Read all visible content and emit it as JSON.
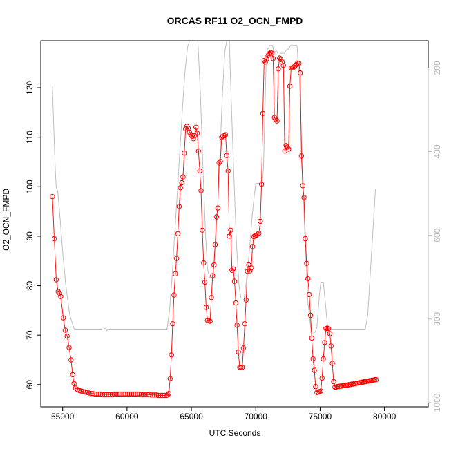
{
  "chart_data": {
    "type": "line",
    "title": "ORCAS RF11 O2_OCN_FMPD",
    "xlabel": "UTC Seconds",
    "ylabel": "O2_OCN_FMPD",
    "xlim": [
      53300,
      83400
    ],
    "ylim": [
      55.5,
      129.5
    ],
    "y2lim": [
      1010,
      135
    ],
    "y2_reversed": true,
    "x_ticks": [
      55000,
      60000,
      65000,
      70000,
      75000,
      80000
    ],
    "y_ticks": [
      60,
      70,
      80,
      90,
      100,
      110,
      120
    ],
    "y2_ticks": [
      200,
      400,
      600,
      800,
      1000
    ],
    "grid": false,
    "colors": {
      "series": "#ff0000",
      "secondary": "#bebebe",
      "right_axis": "#b8b8b8",
      "axis": "#000000"
    },
    "series": [
      {
        "marker": "open-circle",
        "color": "#ff0000",
        "points": [
          [
            54200,
            98
          ],
          [
            54350,
            89.5
          ],
          [
            54500,
            81.2
          ],
          [
            54650,
            78.8
          ],
          [
            54750,
            78.5
          ],
          [
            54850,
            77.8
          ],
          [
            55050,
            73.5
          ],
          [
            55200,
            71
          ],
          [
            55350,
            69.8
          ],
          [
            55500,
            67.5
          ],
          [
            55650,
            65
          ],
          [
            55780,
            62
          ],
          [
            55880,
            60.2
          ],
          [
            56000,
            59.3
          ],
          [
            56150,
            59
          ],
          [
            56300,
            58.8
          ],
          [
            56450,
            58.7
          ],
          [
            56600,
            58.6
          ],
          [
            56750,
            58.5
          ],
          [
            56900,
            58.4
          ],
          [
            57050,
            58.3
          ],
          [
            57200,
            58.2
          ],
          [
            57350,
            58.2
          ],
          [
            57500,
            58.1
          ],
          [
            57650,
            58.1
          ],
          [
            57800,
            58.1
          ],
          [
            57950,
            58.1
          ],
          [
            58100,
            58
          ],
          [
            58250,
            58
          ],
          [
            58400,
            58
          ],
          [
            58550,
            58
          ],
          [
            58700,
            58
          ],
          [
            58850,
            58
          ],
          [
            59000,
            58.1
          ],
          [
            59150,
            58.1
          ],
          [
            59300,
            58.1
          ],
          [
            59450,
            58.1
          ],
          [
            59600,
            58.1
          ],
          [
            59750,
            58.1
          ],
          [
            59900,
            58.1
          ],
          [
            60050,
            58.1
          ],
          [
            60200,
            58.1
          ],
          [
            60350,
            58.1
          ],
          [
            60500,
            58.1
          ],
          [
            60650,
            58.1
          ],
          [
            60800,
            58.1
          ],
          [
            60950,
            58.1
          ],
          [
            61100,
            58
          ],
          [
            61250,
            58
          ],
          [
            61400,
            58
          ],
          [
            61550,
            58
          ],
          [
            61700,
            58
          ],
          [
            61850,
            57.9
          ],
          [
            62000,
            57.9
          ],
          [
            62150,
            57.9
          ],
          [
            62300,
            57.9
          ],
          [
            62450,
            57.8
          ],
          [
            62600,
            57.8
          ],
          [
            62750,
            57.8
          ],
          [
            62900,
            57.8
          ],
          [
            63050,
            57.8
          ],
          [
            63150,
            57.9
          ],
          [
            63250,
            58.2
          ],
          [
            63350,
            61.2
          ],
          [
            63450,
            66
          ],
          [
            63550,
            72.3
          ],
          [
            63650,
            78.1
          ],
          [
            63750,
            82.4
          ],
          [
            63850,
            85.5
          ],
          [
            63950,
            90.5
          ],
          [
            64050,
            96
          ],
          [
            64150,
            99.8
          ],
          [
            64250,
            100.8
          ],
          [
            64350,
            102
          ],
          [
            64450,
            106.8
          ],
          [
            64550,
            111.7
          ],
          [
            64650,
            112.2
          ],
          [
            64750,
            111.8
          ],
          [
            64850,
            111
          ],
          [
            64950,
            110.5
          ],
          [
            65050,
            110.2
          ],
          [
            65150,
            109.7
          ],
          [
            65250,
            110.3
          ],
          [
            65350,
            112
          ],
          [
            65450,
            110.8
          ],
          [
            65550,
            107.2
          ],
          [
            65650,
            103.2
          ],
          [
            65750,
            99.2
          ],
          [
            65850,
            91.2
          ],
          [
            65950,
            84.6
          ],
          [
            66050,
            80.7
          ],
          [
            66150,
            75.6
          ],
          [
            66250,
            73
          ],
          [
            66350,
            72.9
          ],
          [
            66450,
            72.8
          ],
          [
            66550,
            77.6
          ],
          [
            66650,
            82
          ],
          [
            66750,
            84.2
          ],
          [
            66850,
            88.3
          ],
          [
            66950,
            93.9
          ],
          [
            67050,
            95.7
          ],
          [
            67150,
            104.8
          ],
          [
            67250,
            105.1
          ],
          [
            67350,
            110
          ],
          [
            67450,
            110.2
          ],
          [
            67550,
            110.3
          ],
          [
            67650,
            110.5
          ],
          [
            67750,
            106.3
          ],
          [
            67850,
            103.2
          ],
          [
            67950,
            90
          ],
          [
            68050,
            91.2
          ],
          [
            68150,
            83.1
          ],
          [
            68250,
            83.4
          ],
          [
            68350,
            80.9
          ],
          [
            68450,
            76.5
          ],
          [
            68550,
            72
          ],
          [
            68650,
            66.6
          ],
          [
            68750,
            63.5
          ],
          [
            68850,
            63.5
          ],
          [
            68950,
            63.5
          ],
          [
            69050,
            67.4
          ],
          [
            69150,
            72.3
          ],
          [
            69250,
            77.1
          ],
          [
            69350,
            82.9
          ],
          [
            69450,
            84.2
          ],
          [
            69550,
            83
          ],
          [
            69650,
            83.6
          ],
          [
            69750,
            87.9
          ],
          [
            69850,
            89.9
          ],
          [
            69950,
            90.1
          ],
          [
            70050,
            90.2
          ],
          [
            70150,
            90.4
          ],
          [
            70250,
            90.6
          ],
          [
            70350,
            93
          ],
          [
            70450,
            100.5
          ],
          [
            70550,
            114.8
          ],
          [
            70650,
            125.5
          ],
          [
            70750,
            125.2
          ],
          [
            70850,
            125.8
          ],
          [
            70950,
            126.5
          ],
          [
            71050,
            126.9
          ],
          [
            71150,
            127.1
          ],
          [
            71250,
            127
          ],
          [
            71350,
            125.9
          ],
          [
            71450,
            114
          ],
          [
            71550,
            113.6
          ],
          [
            71650,
            113.3
          ],
          [
            71750,
            123.8
          ],
          [
            71850,
            126
          ],
          [
            71950,
            125.7
          ],
          [
            72050,
            125.2
          ],
          [
            72150,
            124.5
          ],
          [
            72250,
            107.2
          ],
          [
            72350,
            108.3
          ],
          [
            72450,
            108
          ],
          [
            72550,
            107.6
          ],
          [
            72650,
            120.3
          ],
          [
            72750,
            124
          ],
          [
            72850,
            124
          ],
          [
            72950,
            124.2
          ],
          [
            73050,
            124.4
          ],
          [
            73150,
            124.7
          ],
          [
            73250,
            125
          ],
          [
            73350,
            124.9
          ],
          [
            73450,
            123
          ],
          [
            73550,
            106.2
          ],
          [
            73650,
            100.2
          ],
          [
            73750,
            97.8
          ],
          [
            73850,
            89.5
          ],
          [
            73950,
            84.5
          ],
          [
            74050,
            81.4
          ],
          [
            74150,
            78.2
          ],
          [
            74250,
            74
          ],
          [
            74350,
            69.4
          ],
          [
            74450,
            65.2
          ],
          [
            74550,
            62.9
          ],
          [
            74650,
            59.6
          ],
          [
            74750,
            58.4
          ],
          [
            74850,
            58.5
          ],
          [
            74950,
            58.6
          ],
          [
            75050,
            58.7
          ],
          [
            75150,
            61.3
          ],
          [
            75250,
            65.2
          ],
          [
            75350,
            68.5
          ],
          [
            75450,
            71.3
          ],
          [
            75550,
            71.4
          ],
          [
            75650,
            71.3
          ],
          [
            75750,
            70.3
          ],
          [
            75850,
            67.8
          ],
          [
            75950,
            64.3
          ],
          [
            76050,
            60.6
          ],
          [
            76150,
            59.5
          ],
          [
            76250,
            59.5
          ],
          [
            76350,
            59.6
          ],
          [
            76450,
            59.6
          ],
          [
            76550,
            59.7
          ],
          [
            76650,
            59.7
          ],
          [
            76750,
            59.8
          ],
          [
            76850,
            59.8
          ],
          [
            76950,
            59.9
          ],
          [
            77050,
            59.9
          ],
          [
            77150,
            59.9
          ],
          [
            77250,
            60
          ],
          [
            77350,
            60
          ],
          [
            77450,
            60.1
          ],
          [
            77550,
            60.1
          ],
          [
            77650,
            60.2
          ],
          [
            77750,
            60.2
          ],
          [
            77850,
            60.3
          ],
          [
            77950,
            60.3
          ],
          [
            78050,
            60.4
          ],
          [
            78150,
            60.4
          ],
          [
            78250,
            60.5
          ],
          [
            78350,
            60.5
          ],
          [
            78450,
            60.6
          ],
          [
            78550,
            60.6
          ],
          [
            78650,
            60.7
          ],
          [
            78750,
            60.7
          ],
          [
            78850,
            60.8
          ],
          [
            78950,
            60.8
          ],
          [
            79050,
            60.9
          ],
          [
            79150,
            60.9
          ],
          [
            79250,
            61
          ],
          [
            79350,
            61
          ]
        ]
      }
    ],
    "secondary": {
      "axis": "right",
      "color": "#bebebe",
      "points": [
        [
          54200,
          245
        ],
        [
          54420,
          440
        ],
        [
          54500,
          485
        ],
        [
          54620,
          495
        ],
        [
          54800,
          560
        ],
        [
          55000,
          640
        ],
        [
          55250,
          720
        ],
        [
          55550,
          790
        ],
        [
          55900,
          825
        ],
        [
          56100,
          826
        ],
        [
          57000,
          826
        ],
        [
          58000,
          826
        ],
        [
          58300,
          822
        ],
        [
          58400,
          828
        ],
        [
          58500,
          826
        ],
        [
          59000,
          826
        ],
        [
          60000,
          826
        ],
        [
          61000,
          826
        ],
        [
          62000,
          826
        ],
        [
          63000,
          826
        ],
        [
          63100,
          826
        ],
        [
          63300,
          780
        ],
        [
          63500,
          700
        ],
        [
          63700,
          600
        ],
        [
          63900,
          500
        ],
        [
          64100,
          400
        ],
        [
          64300,
          300
        ],
        [
          64500,
          210
        ],
        [
          64700,
          150
        ],
        [
          64850,
          135
        ],
        [
          65500,
          135
        ],
        [
          65700,
          260
        ],
        [
          65900,
          440
        ],
        [
          66100,
          600
        ],
        [
          66250,
          680
        ],
        [
          66400,
          700
        ],
        [
          66700,
          700
        ],
        [
          66800,
          640
        ],
        [
          67000,
          560
        ],
        [
          67200,
          420
        ],
        [
          67400,
          270
        ],
        [
          67600,
          160
        ],
        [
          67750,
          135
        ],
        [
          67950,
          135
        ],
        [
          68100,
          280
        ],
        [
          68300,
          460
        ],
        [
          68500,
          620
        ],
        [
          68700,
          720
        ],
        [
          68850,
          750
        ],
        [
          69100,
          750
        ],
        [
          69300,
          700
        ],
        [
          69500,
          640
        ],
        [
          69700,
          560
        ],
        [
          69900,
          500
        ],
        [
          70000,
          476
        ],
        [
          70500,
          476
        ],
        [
          70600,
          440
        ],
        [
          70800,
          190
        ],
        [
          70900,
          155
        ],
        [
          71000,
          152
        ],
        [
          71100,
          146
        ],
        [
          71300,
          146
        ],
        [
          71400,
          160
        ],
        [
          71500,
          160
        ],
        [
          71650,
          160
        ],
        [
          71800,
          175
        ],
        [
          71900,
          165
        ],
        [
          72200,
          165
        ],
        [
          72450,
          155
        ],
        [
          72550,
          155
        ],
        [
          72700,
          146
        ],
        [
          73200,
          146
        ],
        [
          73400,
          230
        ],
        [
          73600,
          420
        ],
        [
          73800,
          590
        ],
        [
          74050,
          760
        ],
        [
          74300,
          830
        ],
        [
          74600,
          832
        ],
        [
          74750,
          820
        ],
        [
          74950,
          740
        ],
        [
          75050,
          712
        ],
        [
          75250,
          712
        ],
        [
          75400,
          760
        ],
        [
          75600,
          826
        ],
        [
          75900,
          826
        ],
        [
          76500,
          826
        ],
        [
          77000,
          826
        ],
        [
          77500,
          826
        ],
        [
          78000,
          826
        ],
        [
          78500,
          826
        ],
        [
          78700,
          790
        ],
        [
          78900,
          690
        ],
        [
          79100,
          590
        ],
        [
          79300,
          490
        ]
      ]
    }
  }
}
